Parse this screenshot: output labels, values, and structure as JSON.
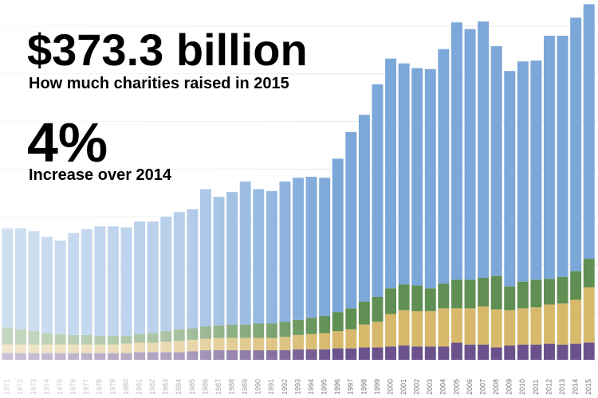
{
  "chart_data": {
    "type": "stacked_bar",
    "title": "$373.3 billion",
    "subtitle": "How much charities raised in 2015",
    "annotations": [
      "4%",
      "Increase over 2014"
    ],
    "categories": [
      "1971",
      "1972",
      "1973",
      "1974",
      "1975",
      "1976",
      "1977",
      "1978",
      "1979",
      "1980",
      "1981",
      "1982",
      "1983",
      "1984",
      "1985",
      "1986",
      "1987",
      "1988",
      "1989",
      "1990",
      "1991",
      "1992",
      "1993",
      "1994",
      "1995",
      "1996",
      "1997",
      "1998",
      "1999",
      "2000",
      "2001",
      "2002",
      "2003",
      "2004",
      "2005",
      "2006",
      "2007",
      "2008",
      "2009",
      "2010",
      "2011",
      "2012",
      "2013",
      "2014",
      "2015"
    ],
    "series": [
      {
        "color": "#6b528c",
        "values": [
          7,
          7,
          7,
          7,
          7,
          7,
          7,
          7,
          7,
          7,
          8,
          8,
          8,
          8,
          9,
          10,
          10,
          10,
          10,
          10,
          10,
          10,
          11,
          11,
          11,
          12,
          12,
          13,
          13,
          14,
          15,
          14,
          14,
          14,
          18,
          16,
          16,
          13,
          15,
          16,
          16,
          17,
          16,
          17,
          18
        ]
      },
      {
        "color": "#d8b96c",
        "values": [
          9,
          9,
          9,
          9,
          9,
          9,
          9,
          9,
          9,
          10,
          10,
          10,
          11,
          12,
          12,
          12,
          13,
          13,
          13,
          13,
          13,
          14,
          15,
          16,
          17,
          18,
          20,
          24,
          27,
          34,
          37,
          37,
          37,
          40,
          36,
          38,
          40,
          40,
          37,
          38,
          39,
          41,
          43,
          46,
          58
        ]
      },
      {
        "color": "#5f8f52",
        "values": [
          18,
          16,
          14,
          12,
          11,
          10,
          10,
          9,
          9,
          8,
          9,
          10,
          11,
          12,
          12,
          13,
          13,
          14,
          14,
          15,
          15,
          16,
          16,
          17,
          18,
          20,
          22,
          24,
          26,
          27,
          27,
          27,
          24,
          26,
          30,
          30,
          30,
          35,
          25,
          28,
          29,
          27,
          28,
          30,
          30
        ]
      },
      {
        "color": "#7ba7d9",
        "values": [
          104,
          106,
          105,
          101,
          98,
          107,
          111,
          115,
          115,
          114,
          118,
          117,
          120,
          123,
          125,
          144,
          135,
          139,
          150,
          141,
          139,
          147,
          149,
          148,
          145,
          161,
          185,
          196,
          223,
          241,
          232,
          228,
          230,
          246,
          270,
          263,
          269,
          241,
          226,
          231,
          230,
          255,
          253,
          266,
          267
        ]
      }
    ],
    "ylim": [
      0,
      375
    ],
    "yticks": [
      0,
      50,
      100,
      150,
      200,
      250,
      300,
      350
    ],
    "grid": true
  }
}
